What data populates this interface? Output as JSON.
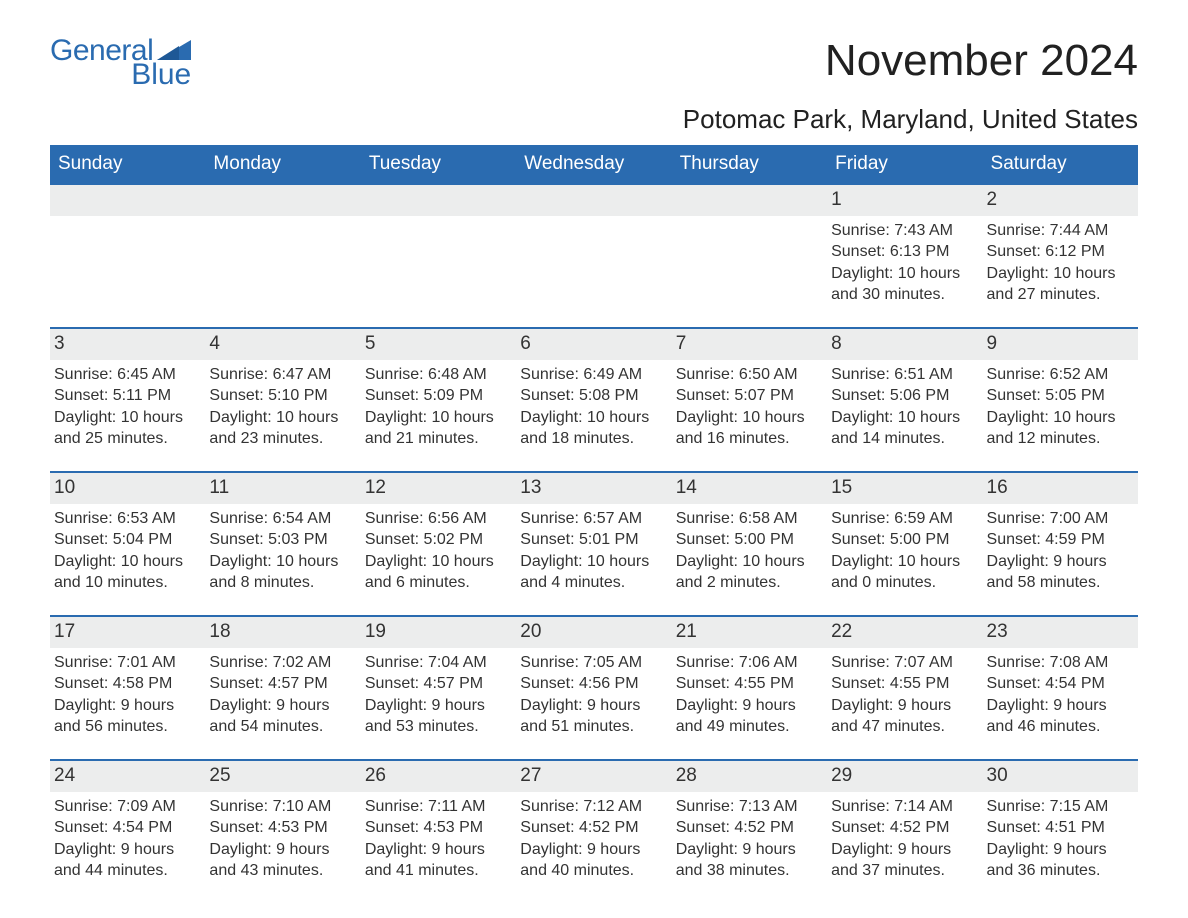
{
  "logo": {
    "text1": "General",
    "text2": "Blue",
    "accent_color": "#2a6bb0"
  },
  "month_title": "November 2024",
  "location": "Potomac Park, Maryland, United States",
  "day_headers": [
    "Sunday",
    "Monday",
    "Tuesday",
    "Wednesday",
    "Thursday",
    "Friday",
    "Saturday"
  ],
  "colors": {
    "header_bg": "#2a6bb0",
    "header_text": "#ffffff",
    "daynum_bg": "#eceded",
    "text": "#333333",
    "rule": "#2a6bb0",
    "background": "#ffffff"
  },
  "typography": {
    "month_title_fontsize": 44,
    "location_fontsize": 26,
    "header_fontsize": 19,
    "daynum_fontsize": 19,
    "body_fontsize": 16
  },
  "weeks": [
    [
      {
        "empty": true
      },
      {
        "empty": true
      },
      {
        "empty": true
      },
      {
        "empty": true
      },
      {
        "empty": true
      },
      {
        "day": "1",
        "sunrise": "Sunrise: 7:43 AM",
        "sunset": "Sunset: 6:13 PM",
        "daylight": "Daylight: 10 hours and 30 minutes."
      },
      {
        "day": "2",
        "sunrise": "Sunrise: 7:44 AM",
        "sunset": "Sunset: 6:12 PM",
        "daylight": "Daylight: 10 hours and 27 minutes."
      }
    ],
    [
      {
        "day": "3",
        "sunrise": "Sunrise: 6:45 AM",
        "sunset": "Sunset: 5:11 PM",
        "daylight": "Daylight: 10 hours and 25 minutes."
      },
      {
        "day": "4",
        "sunrise": "Sunrise: 6:47 AM",
        "sunset": "Sunset: 5:10 PM",
        "daylight": "Daylight: 10 hours and 23 minutes."
      },
      {
        "day": "5",
        "sunrise": "Sunrise: 6:48 AM",
        "sunset": "Sunset: 5:09 PM",
        "daylight": "Daylight: 10 hours and 21 minutes."
      },
      {
        "day": "6",
        "sunrise": "Sunrise: 6:49 AM",
        "sunset": "Sunset: 5:08 PM",
        "daylight": "Daylight: 10 hours and 18 minutes."
      },
      {
        "day": "7",
        "sunrise": "Sunrise: 6:50 AM",
        "sunset": "Sunset: 5:07 PM",
        "daylight": "Daylight: 10 hours and 16 minutes."
      },
      {
        "day": "8",
        "sunrise": "Sunrise: 6:51 AM",
        "sunset": "Sunset: 5:06 PM",
        "daylight": "Daylight: 10 hours and 14 minutes."
      },
      {
        "day": "9",
        "sunrise": "Sunrise: 6:52 AM",
        "sunset": "Sunset: 5:05 PM",
        "daylight": "Daylight: 10 hours and 12 minutes."
      }
    ],
    [
      {
        "day": "10",
        "sunrise": "Sunrise: 6:53 AM",
        "sunset": "Sunset: 5:04 PM",
        "daylight": "Daylight: 10 hours and 10 minutes."
      },
      {
        "day": "11",
        "sunrise": "Sunrise: 6:54 AM",
        "sunset": "Sunset: 5:03 PM",
        "daylight": "Daylight: 10 hours and 8 minutes."
      },
      {
        "day": "12",
        "sunrise": "Sunrise: 6:56 AM",
        "sunset": "Sunset: 5:02 PM",
        "daylight": "Daylight: 10 hours and 6 minutes."
      },
      {
        "day": "13",
        "sunrise": "Sunrise: 6:57 AM",
        "sunset": "Sunset: 5:01 PM",
        "daylight": "Daylight: 10 hours and 4 minutes."
      },
      {
        "day": "14",
        "sunrise": "Sunrise: 6:58 AM",
        "sunset": "Sunset: 5:00 PM",
        "daylight": "Daylight: 10 hours and 2 minutes."
      },
      {
        "day": "15",
        "sunrise": "Sunrise: 6:59 AM",
        "sunset": "Sunset: 5:00 PM",
        "daylight": "Daylight: 10 hours and 0 minutes."
      },
      {
        "day": "16",
        "sunrise": "Sunrise: 7:00 AM",
        "sunset": "Sunset: 4:59 PM",
        "daylight": "Daylight: 9 hours and 58 minutes."
      }
    ],
    [
      {
        "day": "17",
        "sunrise": "Sunrise: 7:01 AM",
        "sunset": "Sunset: 4:58 PM",
        "daylight": "Daylight: 9 hours and 56 minutes."
      },
      {
        "day": "18",
        "sunrise": "Sunrise: 7:02 AM",
        "sunset": "Sunset: 4:57 PM",
        "daylight": "Daylight: 9 hours and 54 minutes."
      },
      {
        "day": "19",
        "sunrise": "Sunrise: 7:04 AM",
        "sunset": "Sunset: 4:57 PM",
        "daylight": "Daylight: 9 hours and 53 minutes."
      },
      {
        "day": "20",
        "sunrise": "Sunrise: 7:05 AM",
        "sunset": "Sunset: 4:56 PM",
        "daylight": "Daylight: 9 hours and 51 minutes."
      },
      {
        "day": "21",
        "sunrise": "Sunrise: 7:06 AM",
        "sunset": "Sunset: 4:55 PM",
        "daylight": "Daylight: 9 hours and 49 minutes."
      },
      {
        "day": "22",
        "sunrise": "Sunrise: 7:07 AM",
        "sunset": "Sunset: 4:55 PM",
        "daylight": "Daylight: 9 hours and 47 minutes."
      },
      {
        "day": "23",
        "sunrise": "Sunrise: 7:08 AM",
        "sunset": "Sunset: 4:54 PM",
        "daylight": "Daylight: 9 hours and 46 minutes."
      }
    ],
    [
      {
        "day": "24",
        "sunrise": "Sunrise: 7:09 AM",
        "sunset": "Sunset: 4:54 PM",
        "daylight": "Daylight: 9 hours and 44 minutes."
      },
      {
        "day": "25",
        "sunrise": "Sunrise: 7:10 AM",
        "sunset": "Sunset: 4:53 PM",
        "daylight": "Daylight: 9 hours and 43 minutes."
      },
      {
        "day": "26",
        "sunrise": "Sunrise: 7:11 AM",
        "sunset": "Sunset: 4:53 PM",
        "daylight": "Daylight: 9 hours and 41 minutes."
      },
      {
        "day": "27",
        "sunrise": "Sunrise: 7:12 AM",
        "sunset": "Sunset: 4:52 PM",
        "daylight": "Daylight: 9 hours and 40 minutes."
      },
      {
        "day": "28",
        "sunrise": "Sunrise: 7:13 AM",
        "sunset": "Sunset: 4:52 PM",
        "daylight": "Daylight: 9 hours and 38 minutes."
      },
      {
        "day": "29",
        "sunrise": "Sunrise: 7:14 AM",
        "sunset": "Sunset: 4:52 PM",
        "daylight": "Daylight: 9 hours and 37 minutes."
      },
      {
        "day": "30",
        "sunrise": "Sunrise: 7:15 AM",
        "sunset": "Sunset: 4:51 PM",
        "daylight": "Daylight: 9 hours and 36 minutes."
      }
    ]
  ]
}
